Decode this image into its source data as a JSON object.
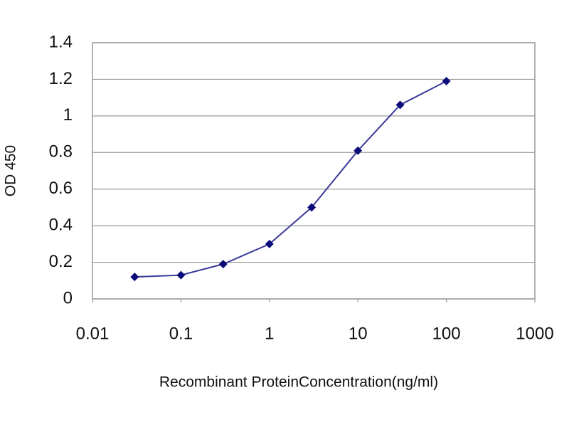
{
  "chart_data": {
    "type": "line",
    "xlabel": "Recombinant ProteinConcentration(ng/ml)",
    "ylabel": "OD 450",
    "x": [
      0.03,
      0.1,
      0.3,
      1,
      3,
      10,
      30,
      100
    ],
    "values": [
      0.12,
      0.13,
      0.19,
      0.3,
      0.5,
      0.81,
      1.06,
      1.19
    ],
    "color": "#3a3a9a",
    "marker_color": "#0c0c78",
    "xscale": "log",
    "xlim": [
      0.01,
      1000
    ],
    "xticks": [
      0.01,
      0.1,
      1,
      10,
      100,
      1000
    ],
    "ylim": [
      0,
      1.4
    ],
    "yticks": [
      0,
      0.2,
      0.4,
      0.6,
      0.8,
      1,
      1.2,
      1.4
    ],
    "ygrid": true
  }
}
